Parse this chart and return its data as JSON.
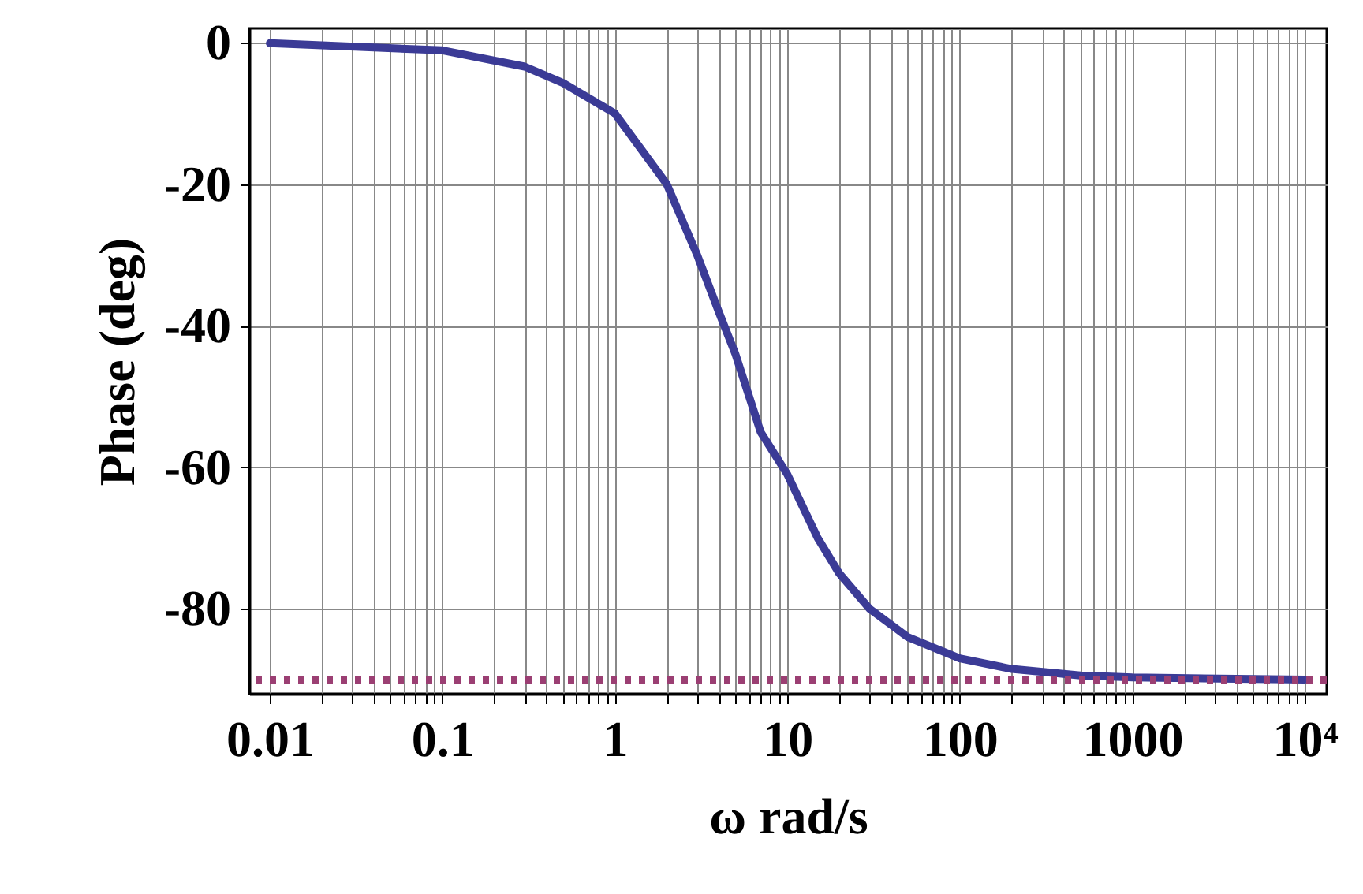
{
  "chart_data": {
    "type": "line",
    "xlabel": "ω  rad/s",
    "ylabel": "Phase (deg)",
    "log": "x",
    "grid": true,
    "line_style": "solid",
    "x": [
      0.01,
      0.1,
      0.3,
      0.5,
      1,
      2,
      3,
      4,
      5,
      7,
      10,
      15,
      20,
      30,
      50,
      100,
      200,
      500,
      1000,
      10000
    ],
    "series": [
      {
        "color": "#3b3b96",
        "values": [
          -0.1,
          -1.1,
          -3.4,
          -5.7,
          -10,
          -20,
          -30,
          -38,
          -44,
          -55,
          -61,
          -70,
          -75,
          -80,
          -84,
          -87,
          -88.5,
          -89.4,
          -89.7,
          -90
        ]
      }
    ],
    "ref_lines": [
      {
        "axis": "y",
        "value": -90,
        "color": "#9b3f73",
        "line_style": "dotted"
      }
    ],
    "xlim": [
      0.0076,
      13400
    ],
    "ylim": [
      -92,
      2
    ],
    "xticks": [
      0.01,
      {
        "value": 0.02,
        "label": null
      },
      {
        "value": 0.03,
        "label": null
      },
      {
        "value": 0.04,
        "label": null
      },
      {
        "value": 0.05,
        "label": null
      },
      {
        "value": 0.06,
        "label": null
      },
      {
        "value": 0.07,
        "label": null
      },
      {
        "value": 0.08,
        "label": null
      },
      {
        "value": 0.09,
        "label": null
      },
      0.1,
      {
        "value": 0.2,
        "label": null
      },
      {
        "value": 0.3,
        "label": null
      },
      {
        "value": 0.4,
        "label": null
      },
      {
        "value": 0.5,
        "label": null
      },
      {
        "value": 0.6,
        "label": null
      },
      {
        "value": 0.7,
        "label": null
      },
      {
        "value": 0.8,
        "label": null
      },
      {
        "value": 0.9,
        "label": null
      },
      1,
      {
        "value": 2,
        "label": null
      },
      {
        "value": 3,
        "label": null
      },
      {
        "value": 4,
        "label": null
      },
      {
        "value": 5,
        "label": null
      },
      {
        "value": 6,
        "label": null
      },
      {
        "value": 7,
        "label": null
      },
      {
        "value": 8,
        "label": null
      },
      {
        "value": 9,
        "label": null
      },
      10,
      {
        "value": 20,
        "label": null
      },
      {
        "value": 30,
        "label": null
      },
      {
        "value": 40,
        "label": null
      },
      {
        "value": 50,
        "label": null
      },
      {
        "value": 60,
        "label": null
      },
      {
        "value": 70,
        "label": null
      },
      {
        "value": 80,
        "label": null
      },
      {
        "value": 90,
        "label": null
      },
      100,
      {
        "value": 200,
        "label": null
      },
      {
        "value": 300,
        "label": null
      },
      {
        "value": 400,
        "label": null
      },
      {
        "value": 500,
        "label": null
      },
      {
        "value": 600,
        "label": null
      },
      {
        "value": 700,
        "label": null
      },
      {
        "value": 800,
        "label": null
      },
      {
        "value": 900,
        "label": null
      },
      1000,
      {
        "value": 2000,
        "label": null
      },
      {
        "value": 3000,
        "label": null
      },
      {
        "value": 4000,
        "label": null
      },
      {
        "value": 5000,
        "label": null
      },
      {
        "value": 6000,
        "label": null
      },
      {
        "value": 7000,
        "label": null
      },
      {
        "value": 8000,
        "label": null
      },
      {
        "value": 9000,
        "label": null
      },
      {
        "value": 10000,
        "label": "10⁴"
      }
    ],
    "yticks": [
      0,
      -20,
      -40,
      -60,
      -80
    ]
  }
}
